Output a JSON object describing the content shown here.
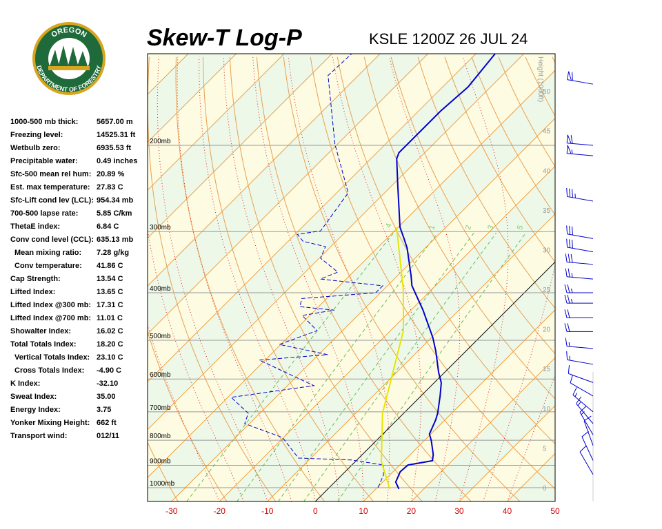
{
  "logo": {
    "top": "OREGON",
    "bottom": "DEPARTMENT OF FORESTRY"
  },
  "header": {
    "title": "Skew-T Log-P",
    "station": "KSLE 1200Z 26 JUL 24"
  },
  "indices": [
    {
      "label": "1000-500 mb thick:",
      "value": "5657.00 m"
    },
    {
      "label": "Freezing level:",
      "value": "14525.31 ft"
    },
    {
      "label": "Wetbulb zero:",
      "value": "6935.53 ft"
    },
    {
      "label": "Precipitable water:",
      "value": "0.49 inches"
    },
    {
      "label": "Sfc-500 mean rel hum:",
      "value": "20.89 %"
    },
    {
      "label": "Est. max temperature:",
      "value": "27.83 C"
    },
    {
      "label": "Sfc-Lift cond lev (LCL):",
      "value": "954.34 mb"
    },
    {
      "label": "700-500 lapse rate:",
      "value": "5.85 C/km"
    },
    {
      "label": "ThetaE index:",
      "value": "6.84 C"
    },
    {
      "label": "Conv cond level (CCL):",
      "value": "635.13 mb"
    },
    {
      "label": "Mean mixing ratio:",
      "value": "7.28 g/kg"
    },
    {
      "label": "Conv temperature:",
      "value": "41.86 C"
    },
    {
      "label": "Cap Strength:",
      "value": "13.54 C"
    },
    {
      "label": "Lifted Index:",
      "value": "13.65 C"
    },
    {
      "label": "Lifted Index @300 mb:",
      "value": "17.31 C"
    },
    {
      "label": "Lifted Index @700 mb:",
      "value": "11.01 C"
    },
    {
      "label": "Showalter Index:",
      "value": "16.02 C"
    },
    {
      "label": "Total Totals Index:",
      "value": "18.20 C"
    },
    {
      "label": "Vertical Totals Index:",
      "value": "23.10 C"
    },
    {
      "label": "Cross Totals Index:",
      "value": "-4.90 C"
    },
    {
      "label": "K Index:",
      "value": "-32.10"
    },
    {
      "label": "Sweat Index:",
      "value": "35.00"
    },
    {
      "label": "Energy Index:",
      "value": "3.75"
    },
    {
      "label": "Yonker Mixing Height:",
      "value": "662 ft"
    },
    {
      "label": "Transport wind:",
      "value": "012/11"
    }
  ],
  "chart_data": {
    "type": "skewt",
    "xlim": [
      -35,
      50
    ],
    "xticks": [
      -30,
      -20,
      -10,
      0,
      10,
      20,
      30,
      40,
      50
    ],
    "ylim": [
      1067,
      130
    ],
    "log_y": true,
    "yticks": [
      {
        "value": 1000,
        "label": "1000mb"
      },
      {
        "value": 900,
        "label": "900mb"
      },
      {
        "value": 800,
        "label": "800mb"
      },
      {
        "value": 700,
        "label": "700mb"
      },
      {
        "value": 600,
        "label": "600mb"
      },
      {
        "value": 500,
        "label": "500mb"
      },
      {
        "value": 400,
        "label": "400mb"
      },
      {
        "value": 300,
        "label": "300mb"
      },
      {
        "value": 200,
        "label": "200mb"
      }
    ],
    "height_label": "Height (1000ft)",
    "height_lim": [
      -1.74,
      54.7
    ],
    "height_ticks": [
      0,
      5,
      10,
      15,
      20,
      25,
      30,
      35,
      40,
      45,
      50
    ],
    "mixing_ratio_labels": [
      {
        "value": 0.4,
        "label": ".4"
      },
      1,
      2,
      3,
      5
    ],
    "series": [
      {
        "color": "#0000cc",
        "dash": false,
        "p": [
          1006,
          974,
          928,
          899,
          881,
          856,
          802,
          777,
          728,
          705,
          650,
          611,
          581,
          527,
          494,
          434,
          387,
          369,
          324,
          309,
          294,
          242,
          213,
          207,
          170,
          152,
          130
        ],
        "t": [
          14.8,
          12.7,
          11.5,
          11.7,
          15.9,
          14.8,
          11.5,
          9.7,
          8.1,
          7.1,
          4.0,
          1.5,
          -1.3,
          -6.2,
          -9.7,
          -17.5,
          -24.9,
          -27.2,
          -33.8,
          -36.6,
          -39.6,
          -48.7,
          -54.6,
          -55.4,
          -55.4,
          -54.7,
          -56.0
        ]
      },
      {
        "color": "#0000cc",
        "dash": true,
        "p": [
          1000,
          943,
          899,
          878,
          870,
          790,
          740,
          705,
          654,
          619,
          549,
          535,
          510,
          478,
          445,
          434,
          427,
          411,
          400,
          387,
          375,
          363,
          340,
          322,
          314,
          304,
          299,
          250,
          199,
          144,
          130
        ],
        "t": [
          10.2,
          8.7,
          6.6,
          -1.1,
          -12.6,
          -20.2,
          -31.0,
          -32.4,
          -39.3,
          -24.5,
          -41.2,
          -28.1,
          -40.3,
          -35.3,
          -41.6,
          -36.0,
          -43.9,
          -45.2,
          -31.0,
          -31.0,
          -45.4,
          -43.2,
          -49.7,
          -51.1,
          -56.9,
          -59.5,
          -55.4,
          -57.6,
          -70.5,
          -86.3,
          -85.9
        ]
      },
      {
        "color": "#e6e600",
        "dash": false,
        "p": [
          1006,
          884,
          705,
          478,
          394,
          294
        ],
        "t": [
          12.9,
          5.4,
          -4.4,
          -17.3,
          -25.9,
          -40.3
        ]
      }
    ],
    "winds": {
      "p": [
        940,
        880,
        820,
        780,
        740,
        700,
        650,
        610,
        560,
        520,
        480,
        450,
        420,
        400,
        375,
        350,
        330,
        310,
        260,
        210,
        200,
        150
      ],
      "dir": [
        330,
        335,
        340,
        330,
        320,
        310,
        300,
        290,
        280,
        275,
        270,
        270,
        270,
        270,
        275,
        275,
        280,
        280,
        280,
        275,
        275,
        280
      ],
      "speed": [
        10,
        10,
        10,
        15,
        15,
        15,
        10,
        10,
        15,
        15,
        20,
        20,
        25,
        25,
        25,
        30,
        30,
        30,
        35,
        55,
        60,
        60
      ]
    }
  }
}
